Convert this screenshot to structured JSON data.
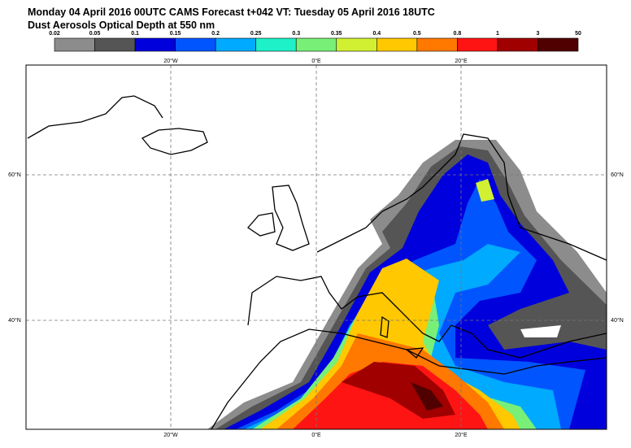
{
  "header": {
    "line1": "Monday 04 April 2016 00UTC CAMS Forecast t+042 VT: Tuesday 05 April 2016 18UTC",
    "line2": "Dust Aerosols Optical Depth at 550 nm"
  },
  "colorbar": {
    "labels": [
      "0.02",
      "0.05",
      "0.1",
      "0.15",
      "0.2",
      "0.25",
      "0.3",
      "0.35",
      "0.4",
      "0.5",
      "0.8",
      "1",
      "3",
      "50"
    ],
    "colors": [
      "#8c8c8c",
      "#555555",
      "#0000dc",
      "#0055ff",
      "#00aaff",
      "#1ef0c8",
      "#78f078",
      "#d2f032",
      "#ffc800",
      "#ff7800",
      "#ff1414",
      "#a00000",
      "#500000"
    ]
  },
  "map": {
    "lon_labels": [
      "20°W",
      "0°E",
      "20°E"
    ],
    "lat_labels": [
      "60°N",
      "40°N"
    ]
  }
}
